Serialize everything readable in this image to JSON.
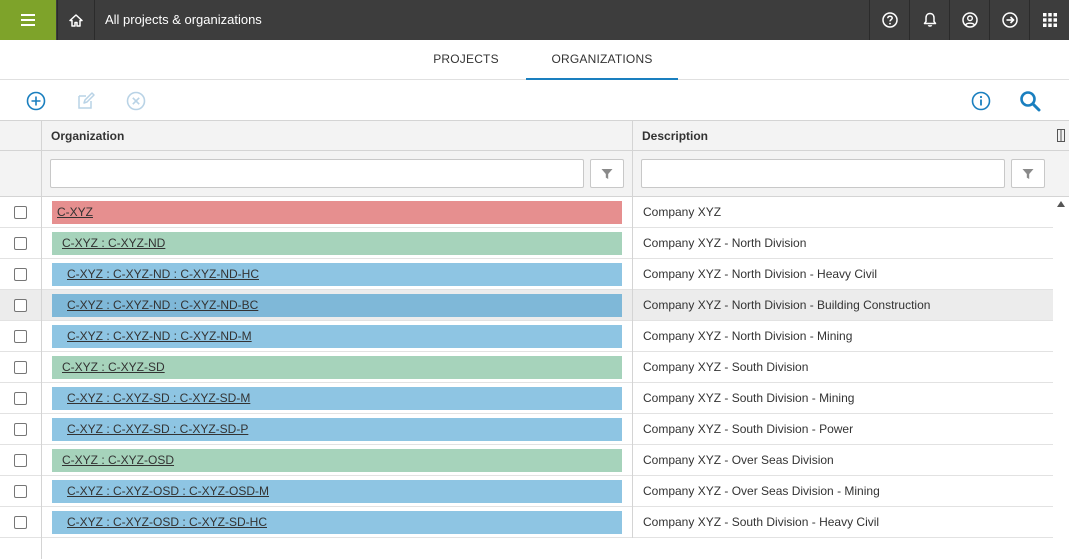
{
  "header": {
    "title": "All projects & organizations",
    "menu_icon": "hamburger-icon",
    "home_icon": "home-icon",
    "right_icons": [
      "help-icon",
      "bell-icon",
      "user-icon",
      "logout-icon",
      "apps-grid-icon"
    ],
    "accent_color": "#7ea32a",
    "bar_color": "#3d3d3d"
  },
  "tabs": [
    {
      "label": "PROJECTS",
      "active": false
    },
    {
      "label": "ORGANIZATIONS",
      "active": true
    }
  ],
  "toolbar": {
    "add_icon": "add-circle-icon",
    "edit_icon": "edit-icon",
    "delete_icon": "delete-circle-icon",
    "info_icon": "info-icon",
    "search_icon": "search-icon"
  },
  "grid": {
    "columns": [
      "Organization",
      "Description"
    ],
    "filters": {
      "organization": "",
      "description": ""
    },
    "rows": [
      {
        "org": "C-XYZ",
        "level": 0,
        "desc": "Company XYZ",
        "highlighted": false
      },
      {
        "org": "C-XYZ : C-XYZ-ND",
        "level": 1,
        "desc": "Company XYZ - North Division",
        "highlighted": false
      },
      {
        "org": "C-XYZ : C-XYZ-ND : C-XYZ-ND-HC",
        "level": 2,
        "desc": "Company XYZ - North Division - Heavy Civil",
        "highlighted": false
      },
      {
        "org": "C-XYZ : C-XYZ-ND : C-XYZ-ND-BC",
        "level": 2,
        "desc": "Company XYZ - North Division - Building Construction",
        "highlighted": true
      },
      {
        "org": "C-XYZ : C-XYZ-ND : C-XYZ-ND-M",
        "level": 2,
        "desc": "Company XYZ - North Division - Mining",
        "highlighted": false
      },
      {
        "org": "C-XYZ : C-XYZ-SD",
        "level": 1,
        "desc": "Company XYZ - South Division",
        "highlighted": false
      },
      {
        "org": "C-XYZ : C-XYZ-SD : C-XYZ-SD-M",
        "level": 2,
        "desc": "Company XYZ - South Division - Mining",
        "highlighted": false
      },
      {
        "org": "C-XYZ : C-XYZ-SD : C-XYZ-SD-P",
        "level": 2,
        "desc": "Company XYZ - South Division - Power",
        "highlighted": false
      },
      {
        "org": "C-XYZ : C-XYZ-OSD",
        "level": 1,
        "desc": "Company XYZ - Over Seas Division",
        "highlighted": false
      },
      {
        "org": "C-XYZ : C-XYZ-OSD : C-XYZ-OSD-M",
        "level": 2,
        "desc": "Company XYZ - Over Seas Division - Mining",
        "highlighted": false
      },
      {
        "org": "C-XYZ : C-XYZ-OSD : C-XYZ-SD-HC",
        "level": 2,
        "desc": "Company XYZ - South Division - Heavy Civil",
        "highlighted": false
      }
    ],
    "level_colors": [
      "#e68f8f",
      "#a6d3bb",
      "#8ec5e3"
    ]
  }
}
